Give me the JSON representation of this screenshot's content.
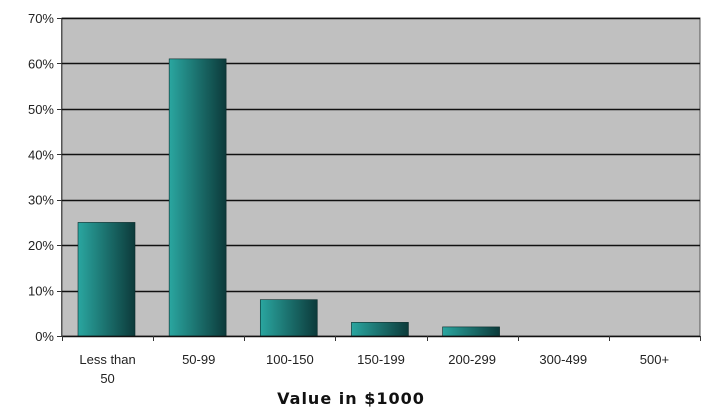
{
  "chart_data": {
    "type": "bar",
    "categories": [
      "Less than 50",
      "50-99",
      "100-150",
      "150-199",
      "200-299",
      "300-499",
      "500+"
    ],
    "category_lines": [
      [
        "Less than",
        "50"
      ],
      [
        "50-99"
      ],
      [
        "100-150"
      ],
      [
        "150-199"
      ],
      [
        "200-299"
      ],
      [
        "300-499"
      ],
      [
        "500+"
      ]
    ],
    "values": [
      25,
      61,
      8,
      3,
      2,
      0,
      0
    ],
    "title": "",
    "xlabel": "Value in $1000",
    "ylabel": "",
    "ylim": [
      0,
      70
    ],
    "yticks": [
      0,
      10,
      20,
      30,
      40,
      50,
      60,
      70
    ],
    "ytick_labels": [
      "0%",
      "10%",
      "20%",
      "30%",
      "40%",
      "50%",
      "60%",
      "70%"
    ],
    "grid": true,
    "legend": "none",
    "colors": {
      "plot_background": "#c0c0c0",
      "bar_light": "#2aa6a0",
      "bar_dark": "#0c3a3a",
      "gridline": "#111111"
    }
  }
}
